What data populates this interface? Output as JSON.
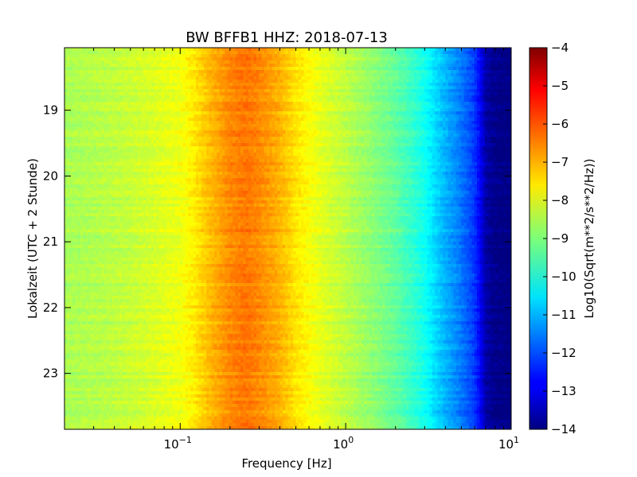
{
  "chart_data": {
    "type": "heatmap",
    "title": "BW BFFB1 HHZ: 2018-07-13",
    "xlabel": "Frequency [Hz]",
    "ylabel": "Lokalzeit (UTC + 2 Stunde)",
    "colorbar_label": "Log10(Sqrt(m**2/s**2/Hz))",
    "x_scale": "log",
    "xlim": [
      0.02,
      10
    ],
    "ylim": [
      18.05,
      23.85
    ],
    "y_inverted": true,
    "x_ticks": [
      {
        "value": 0.1,
        "base": "10",
        "exp": "−1"
      },
      {
        "value": 1,
        "base": "10",
        "exp": "0"
      },
      {
        "value": 10,
        "base": "10",
        "exp": "1"
      }
    ],
    "y_ticks": [
      {
        "value": 19,
        "label": "19"
      },
      {
        "value": 20,
        "label": "20"
      },
      {
        "value": 21,
        "label": "21"
      },
      {
        "value": 22,
        "label": "22"
      },
      {
        "value": 23,
        "label": "23"
      }
    ],
    "colorbar": {
      "colormap": "jet",
      "min": -14,
      "max": -4,
      "ticks": [
        {
          "value": -4,
          "label": "−4"
        },
        {
          "value": -5,
          "label": "−5"
        },
        {
          "value": -6,
          "label": "−6"
        },
        {
          "value": -7,
          "label": "−7"
        },
        {
          "value": -8,
          "label": "−8"
        },
        {
          "value": -9,
          "label": "−9"
        },
        {
          "value": -10,
          "label": "−10"
        },
        {
          "value": -11,
          "label": "−11"
        },
        {
          "value": -12,
          "label": "−12"
        },
        {
          "value": -13,
          "label": "−13"
        },
        {
          "value": -14,
          "label": "−14"
        }
      ]
    },
    "spectral_profile": {
      "frequency_hz": [
        0.02,
        0.04,
        0.06,
        0.1,
        0.12,
        0.15,
        0.2,
        0.25,
        0.3,
        0.4,
        0.5,
        0.7,
        1.0,
        1.5,
        2.0,
        2.5,
        3.0,
        3.5,
        4.0,
        5.0,
        6.0,
        6.5,
        7.0,
        8.0,
        10.0
      ],
      "amplitude_log10": [
        -8.6,
        -8.4,
        -8.2,
        -7.9,
        -7.6,
        -7.1,
        -6.6,
        -6.4,
        -6.6,
        -7.0,
        -7.5,
        -8.0,
        -8.4,
        -8.9,
        -9.3,
        -9.7,
        -10.1,
        -10.6,
        -11.0,
        -11.6,
        -12.2,
        -12.8,
        -13.6,
        -13.9,
        -14.0
      ]
    }
  }
}
